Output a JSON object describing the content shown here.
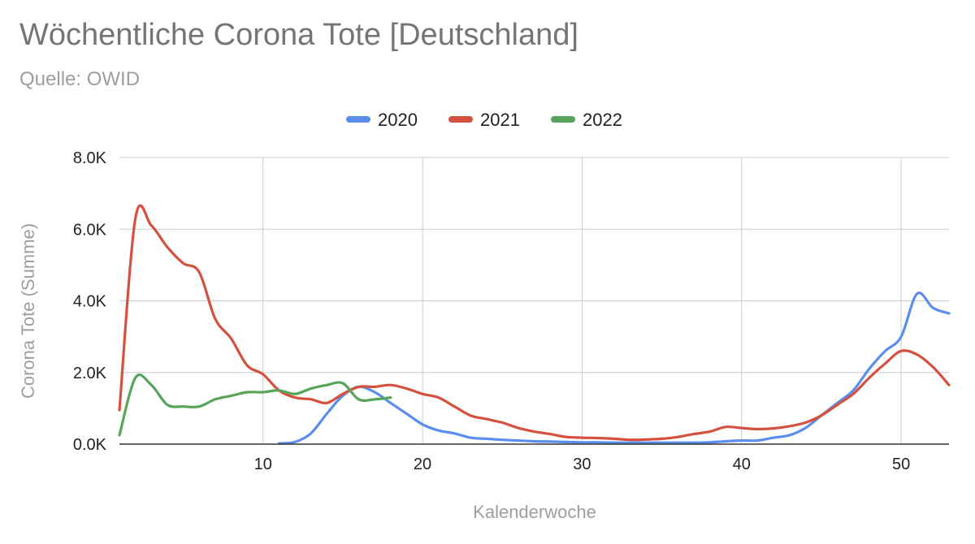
{
  "header": {
    "title": "Wöchentliche Corona Tote [Deutschland]",
    "subtitle": "Quelle: OWID"
  },
  "colors": {
    "2020": "#5b8def",
    "2021": "#d45140",
    "2022": "#57a55a",
    "grid": "#cccccc",
    "axis": "#333333"
  },
  "chart_data": {
    "type": "line",
    "title": "Wöchentliche Corona Tote [Deutschland]",
    "subtitle": "Quelle: OWID",
    "xlabel": "Kalenderwoche",
    "ylabel": "Corona Tote (Summe)",
    "xlim": [
      1,
      53
    ],
    "ylim": [
      0,
      8000
    ],
    "x_ticks": [
      10,
      20,
      30,
      40,
      50
    ],
    "y_ticks": [
      0,
      2000,
      4000,
      6000,
      8000
    ],
    "y_tick_labels": [
      "0.0K",
      "2.0K",
      "4.0K",
      "6.0K",
      "8.0K"
    ],
    "grid": true,
    "legend_position": "top",
    "series": [
      {
        "name": "2020",
        "x": [
          11,
          12,
          13,
          14,
          15,
          16,
          17,
          18,
          19,
          20,
          21,
          22,
          23,
          24,
          25,
          26,
          27,
          28,
          29,
          30,
          31,
          32,
          33,
          34,
          35,
          36,
          37,
          38,
          39,
          40,
          41,
          42,
          43,
          44,
          45,
          46,
          47,
          48,
          49,
          50,
          51,
          52,
          53
        ],
        "y": [
          20,
          60,
          300,
          850,
          1350,
          1600,
          1450,
          1150,
          850,
          550,
          380,
          300,
          180,
          150,
          120,
          100,
          80,
          70,
          60,
          50,
          50,
          40,
          40,
          40,
          40,
          40,
          40,
          50,
          80,
          100,
          100,
          180,
          250,
          450,
          800,
          1150,
          1500,
          2100,
          2600,
          3000,
          4200,
          3800,
          3650
        ]
      },
      {
        "name": "2021",
        "x": [
          1,
          2,
          3,
          4,
          5,
          6,
          7,
          8,
          9,
          10,
          11,
          12,
          13,
          14,
          15,
          16,
          17,
          18,
          19,
          20,
          21,
          22,
          23,
          24,
          25,
          26,
          27,
          28,
          29,
          30,
          31,
          32,
          33,
          34,
          35,
          36,
          37,
          38,
          39,
          40,
          41,
          42,
          43,
          44,
          45,
          46,
          47,
          48,
          49,
          50,
          51,
          52,
          53
        ],
        "y": [
          950,
          6300,
          6100,
          5500,
          5050,
          4800,
          3500,
          2950,
          2200,
          1950,
          1500,
          1300,
          1250,
          1150,
          1400,
          1600,
          1600,
          1650,
          1550,
          1400,
          1300,
          1050,
          800,
          700,
          600,
          450,
          350,
          280,
          200,
          180,
          170,
          150,
          120,
          130,
          150,
          200,
          280,
          350,
          480,
          450,
          420,
          440,
          500,
          600,
          800,
          1100,
          1400,
          1850,
          2250,
          2600,
          2500,
          2150,
          1650
        ]
      },
      {
        "name": "2022",
        "x": [
          1,
          2,
          3,
          4,
          5,
          6,
          7,
          8,
          9,
          10,
          11,
          12,
          13,
          14,
          15,
          16,
          17,
          18
        ],
        "y": [
          250,
          1850,
          1650,
          1100,
          1050,
          1050,
          1250,
          1350,
          1450,
          1450,
          1500,
          1400,
          1550,
          1650,
          1700,
          1250,
          1250,
          1300
        ]
      }
    ]
  }
}
